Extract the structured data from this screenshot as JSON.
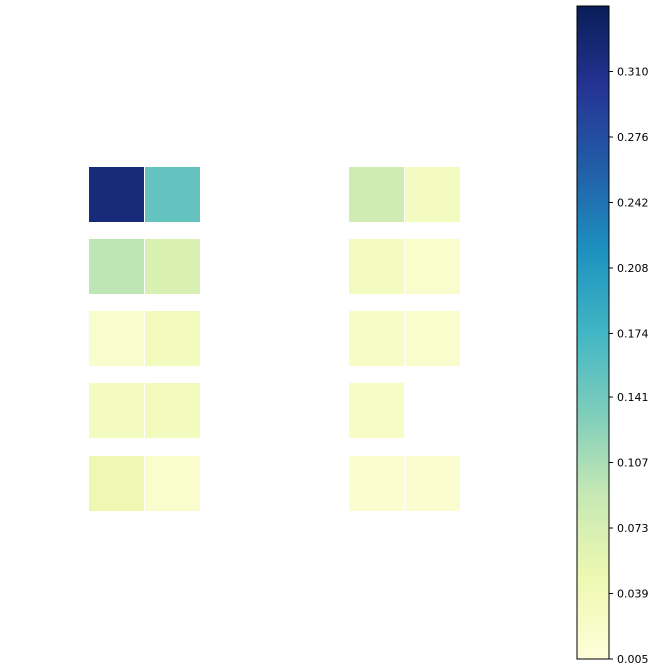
{
  "chart_data": {
    "type": "heatmap",
    "title": "",
    "xlabel": "",
    "ylabel": "",
    "colormap": "YlGnBu",
    "color_range": [
      0.005,
      0.344
    ],
    "colorbar_ticks": [
      "0.005",
      "0.039",
      "0.073",
      "0.107",
      "0.141",
      "0.174",
      "0.208",
      "0.242",
      "0.276",
      "0.310"
    ],
    "colorbar_tick_values": [
      0.005,
      0.039,
      0.073,
      0.107,
      0.141,
      0.174,
      0.208,
      0.242,
      0.276,
      0.31
    ],
    "panels": [
      {
        "name": "left-panel",
        "rows": [
          [
            0.32,
            0.15
          ],
          [
            0.095,
            0.07
          ],
          [
            0.018,
            0.035
          ],
          [
            0.03,
            0.035
          ],
          [
            0.045,
            0.02
          ]
        ]
      },
      {
        "name": "right-panel",
        "rows": [
          [
            0.08,
            0.03
          ],
          [
            0.03,
            0.02
          ],
          [
            0.025,
            0.02
          ],
          [
            0.025,
            null
          ],
          [
            0.015,
            0.015
          ]
        ]
      }
    ]
  }
}
